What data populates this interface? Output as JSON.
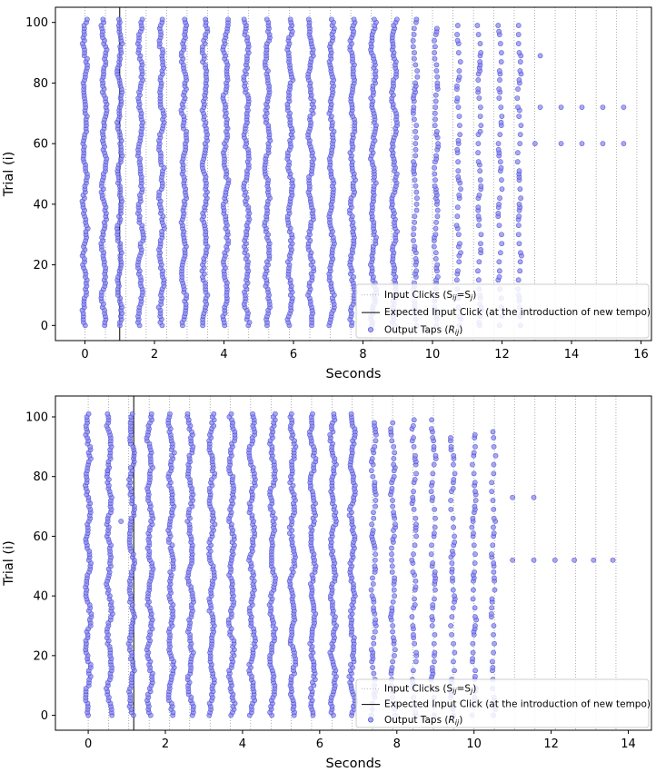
{
  "chart_data": [
    {
      "type": "scatter",
      "title": "",
      "xlabel": "Seconds",
      "ylabel": "Trial (i)",
      "xlim": [
        -0.85,
        16.3
      ],
      "ylim": [
        -5,
        105
      ],
      "xticks": [
        0,
        2,
        4,
        6,
        8,
        10,
        12,
        14,
        16
      ],
      "yticks": [
        0,
        20,
        40,
        60,
        80,
        100
      ],
      "grid": false,
      "legend_position": "lower-right",
      "input_click_times": [
        0,
        0.59,
        1.18,
        1.76,
        2.35,
        2.94,
        3.53,
        4.12,
        4.71,
        5.29,
        5.88,
        6.47,
        7.06,
        7.65,
        8.24,
        8.82,
        9.41,
        10.0,
        10.59,
        11.18,
        11.76,
        12.35,
        12.94,
        13.53,
        14.12,
        14.71,
        15.29,
        15.88
      ],
      "expected_input_click": 1.0,
      "output_taps": {
        "dense_columns": [
          {
            "x": 0.0,
            "trials": [
              0,
              101
            ]
          },
          {
            "x": 0.55,
            "trials": [
              0,
              101
            ]
          },
          {
            "x": 1.0,
            "trials": [
              0,
              101
            ]
          },
          {
            "x": 1.6,
            "trials": [
              0,
              101
            ]
          },
          {
            "x": 2.2,
            "trials": [
              0,
              101
            ]
          },
          {
            "x": 2.85,
            "trials": [
              0,
              101
            ]
          },
          {
            "x": 3.45,
            "trials": [
              0,
              101
            ]
          },
          {
            "x": 4.05,
            "trials": [
              0,
              101
            ]
          },
          {
            "x": 4.65,
            "trials": [
              0,
              101
            ]
          },
          {
            "x": 5.25,
            "trials": [
              0,
              101
            ]
          },
          {
            "x": 5.9,
            "trials": [
              0,
              101
            ]
          },
          {
            "x": 6.5,
            "trials": [
              0,
              101
            ]
          },
          {
            "x": 7.1,
            "trials": [
              0,
              101
            ]
          },
          {
            "x": 7.7,
            "trials": [
              0,
              101
            ]
          },
          {
            "x": 8.3,
            "trials": [
              0,
              101
            ]
          },
          {
            "x": 8.9,
            "trials": [
              0,
              101
            ]
          }
        ],
        "sparse_columns": [
          {
            "x": 9.5,
            "trials": [
              0,
              101
            ]
          },
          {
            "x": 10.1,
            "trials": [
              0,
              99
            ]
          },
          {
            "x": 10.75,
            "trials": [
              0,
              99
            ]
          },
          {
            "x": 11.35,
            "trials": [
              0,
              99
            ]
          },
          {
            "x": 11.95,
            "trials": [
              0,
              99
            ]
          },
          {
            "x": 12.5,
            "trials": [
              0,
              99
            ]
          }
        ],
        "extra_points": [
          {
            "x": 13.1,
            "y": 89
          },
          {
            "x": 13.1,
            "y": 72
          },
          {
            "x": 13.7,
            "y": 72
          },
          {
            "x": 14.3,
            "y": 72
          },
          {
            "x": 14.9,
            "y": 72
          },
          {
            "x": 15.5,
            "y": 72
          },
          {
            "x": 12.95,
            "y": 60
          },
          {
            "x": 13.7,
            "y": 60
          },
          {
            "x": 14.3,
            "y": 60
          },
          {
            "x": 14.9,
            "y": 60
          },
          {
            "x": 15.5,
            "y": 60
          }
        ]
      }
    },
    {
      "type": "scatter",
      "title": "",
      "xlabel": "Seconds",
      "ylabel": "Trial (i)",
      "xlim": [
        -0.85,
        14.6
      ],
      "ylim": [
        -5,
        107
      ],
      "xticks": [
        0,
        2,
        4,
        6,
        8,
        10,
        12,
        14
      ],
      "yticks": [
        0,
        20,
        40,
        60,
        80,
        100
      ],
      "grid": false,
      "legend_position": "lower-right",
      "input_click_times": [
        0,
        0.53,
        1.05,
        1.58,
        2.11,
        2.63,
        3.16,
        3.68,
        4.21,
        4.74,
        5.26,
        5.79,
        6.32,
        6.84,
        7.37,
        7.89,
        8.42,
        8.95,
        9.47,
        10.0,
        10.53,
        11.05,
        11.58,
        12.11,
        12.63,
        13.16,
        13.68
      ],
      "expected_input_click": 1.18,
      "output_taps": {
        "dense_columns": [
          {
            "x": 0.0,
            "trials": [
              0,
              101
            ]
          },
          {
            "x": 0.55,
            "trials": [
              0,
              101
            ]
          },
          {
            "x": 1.12,
            "trials": [
              0,
              101
            ]
          },
          {
            "x": 1.6,
            "trials": [
              0,
              101
            ]
          },
          {
            "x": 2.15,
            "trials": [
              0,
              101
            ]
          },
          {
            "x": 2.65,
            "trials": [
              0,
              101
            ]
          },
          {
            "x": 3.2,
            "trials": [
              0,
              101
            ]
          },
          {
            "x": 3.72,
            "trials": [
              0,
              101
            ]
          },
          {
            "x": 4.25,
            "trials": [
              0,
              101
            ]
          },
          {
            "x": 4.78,
            "trials": [
              0,
              101
            ]
          },
          {
            "x": 5.3,
            "trials": [
              0,
              101
            ]
          },
          {
            "x": 5.82,
            "trials": [
              0,
              101
            ]
          },
          {
            "x": 6.35,
            "trials": [
              0,
              101
            ]
          },
          {
            "x": 6.85,
            "trials": [
              0,
              101
            ]
          }
        ],
        "sparse_columns": [
          {
            "x": 7.4,
            "trials": [
              0,
              99
            ]
          },
          {
            "x": 7.9,
            "trials": [
              0,
              99
            ]
          },
          {
            "x": 8.45,
            "trials": [
              0,
              99
            ]
          },
          {
            "x": 8.95,
            "trials": [
              0,
              99
            ]
          },
          {
            "x": 9.45,
            "trials": [
              0,
              95
            ]
          },
          {
            "x": 10.0,
            "trials": [
              0,
              95
            ]
          },
          {
            "x": 10.5,
            "trials": [
              0,
              95
            ]
          }
        ],
        "extra_points": [
          {
            "x": 0.5,
            "y": 82
          },
          {
            "x": 0.85,
            "y": 65
          },
          {
            "x": 11.0,
            "y": 73
          },
          {
            "x": 11.55,
            "y": 73
          },
          {
            "x": 11.0,
            "y": 52
          },
          {
            "x": 11.55,
            "y": 52
          },
          {
            "x": 12.1,
            "y": 52
          },
          {
            "x": 12.6,
            "y": 52
          },
          {
            "x": 13.1,
            "y": 52
          },
          {
            "x": 13.6,
            "y": 52
          }
        ]
      }
    }
  ],
  "legend": {
    "input_clicks": "Input Clicks (S",
    "input_clicks_sub": "ij",
    "input_clicks_eq": "=S",
    "input_clicks_sub2": "j",
    "input_clicks_close": ")",
    "expected_input_click": "Expected Input Click (at the introduction of new tempo)",
    "output_taps": "Output Taps (",
    "output_taps_var": "R",
    "output_taps_sub": "ij",
    "output_taps_close": ")"
  },
  "colors": {
    "tap_fill": "#8c8ce8",
    "tap_stroke": "#2b2bd9",
    "input_line": "#9a9a9a",
    "expected_line": "#000000"
  }
}
